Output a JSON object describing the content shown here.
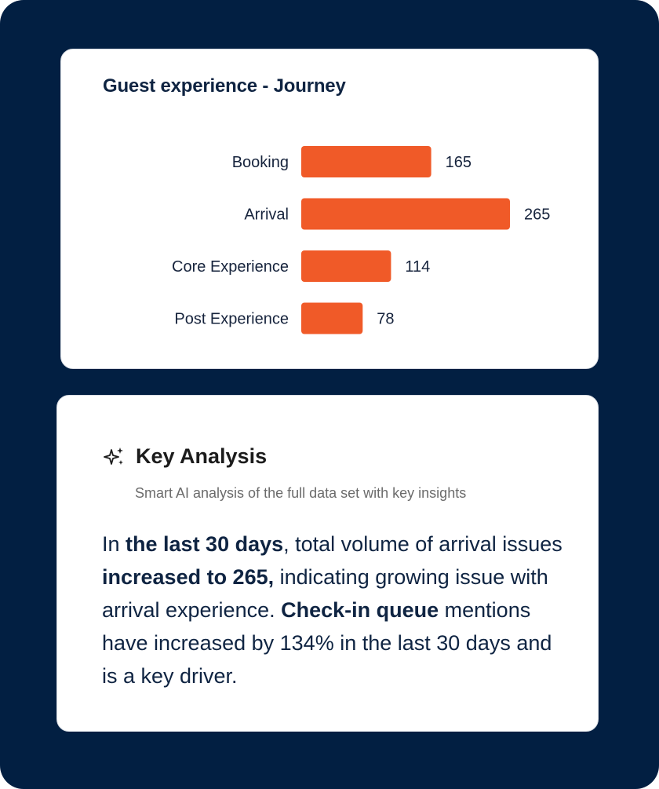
{
  "chart_data": {
    "type": "bar",
    "orientation": "horizontal",
    "title": "Guest experience - Journey",
    "categories": [
      "Booking",
      "Arrival",
      "Core Experience",
      "Post Experience"
    ],
    "values": [
      165,
      265,
      114,
      78
    ],
    "xlim": [
      0,
      265
    ],
    "bar_color": "#f05a28"
  },
  "analysis": {
    "icon": "sparkle-icon",
    "title": "Key Analysis",
    "subtitle": "Smart AI analysis of the full data set with key insights",
    "body": {
      "p1": "In ",
      "b1": "the last 30 days",
      "p2": ", total volume of arrival issues ",
      "b2": "increased to 265,",
      "p3": " indicating growing issue with arrival experience. ",
      "b3": "Check-in queue",
      "p4": " mentions have increased by 134% in the last 30 days and is a key driver."
    }
  },
  "colors": {
    "background": "#021f42",
    "card": "#ffffff",
    "accent": "#f05a28",
    "text_dark": "#0f2442"
  }
}
